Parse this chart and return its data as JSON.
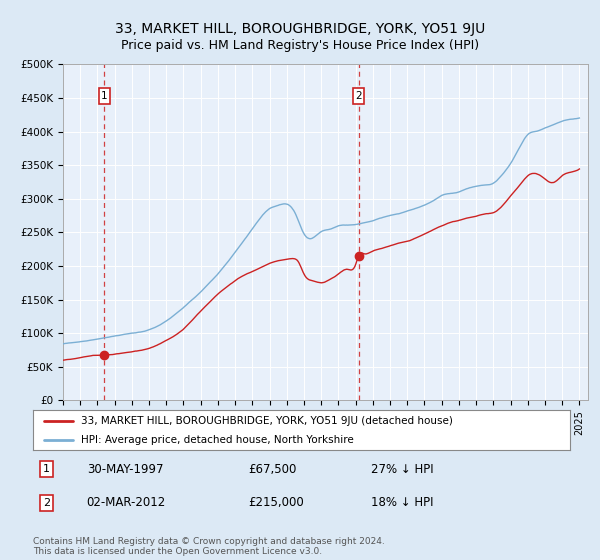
{
  "title": "33, MARKET HILL, BOROUGHBRIDGE, YORK, YO51 9JU",
  "subtitle": "Price paid vs. HM Land Registry's House Price Index (HPI)",
  "title_fontsize": 10,
  "subtitle_fontsize": 9,
  "bg_color": "#dce9f5",
  "plot_bg_color": "#e8f0fa",
  "ylim": [
    0,
    500000
  ],
  "xlim_start": 1995.0,
  "xlim_end": 2025.5,
  "yticks": [
    0,
    50000,
    100000,
    150000,
    200000,
    250000,
    300000,
    350000,
    400000,
    450000,
    500000
  ],
  "ytick_labels": [
    "£0",
    "£50K",
    "£100K",
    "£150K",
    "£200K",
    "£250K",
    "£300K",
    "£350K",
    "£400K",
    "£450K",
    "£500K"
  ],
  "xticks": [
    1995,
    1996,
    1997,
    1998,
    1999,
    2000,
    2001,
    2002,
    2003,
    2004,
    2005,
    2006,
    2007,
    2008,
    2009,
    2010,
    2011,
    2012,
    2013,
    2014,
    2015,
    2016,
    2017,
    2018,
    2019,
    2020,
    2021,
    2022,
    2023,
    2024,
    2025
  ],
  "hpi_color": "#7bafd4",
  "property_color": "#cc2222",
  "marker_color": "#cc2222",
  "sale1_x": 1997.41,
  "sale1_y": 67500,
  "sale2_x": 2012.17,
  "sale2_y": 215000,
  "legend_label1": "33, MARKET HILL, BOROUGHBRIDGE, YORK, YO51 9JU (detached house)",
  "legend_label2": "HPI: Average price, detached house, North Yorkshire",
  "footer1": "Contains HM Land Registry data © Crown copyright and database right 2024.",
  "footer2": "This data is licensed under the Open Government Licence v3.0.",
  "table_row1_num": "1",
  "table_row1_date": "30-MAY-1997",
  "table_row1_price": "£67,500",
  "table_row1_hpi": "27% ↓ HPI",
  "table_row2_num": "2",
  "table_row2_date": "02-MAR-2012",
  "table_row2_price": "£215,000",
  "table_row2_hpi": "18% ↓ HPI"
}
